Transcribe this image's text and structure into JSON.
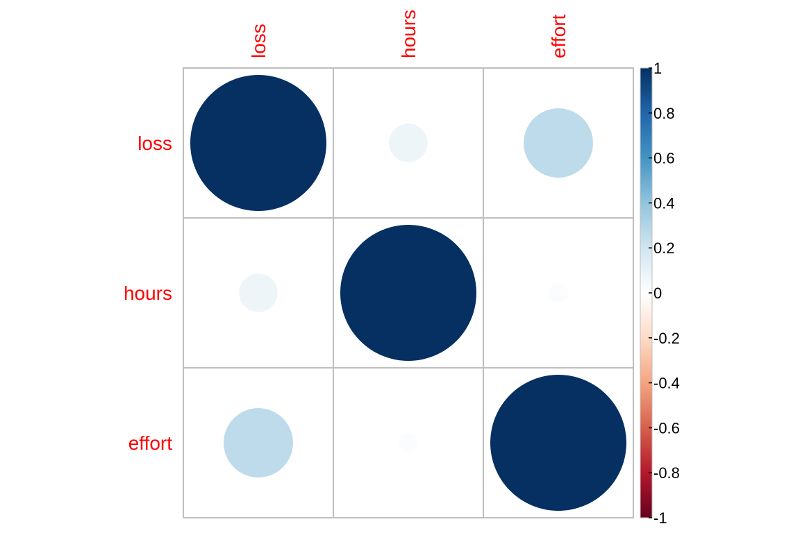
{
  "chart_data": {
    "type": "heatmap",
    "method": "circle",
    "variables": [
      "loss",
      "hours",
      "effort"
    ],
    "matrix": [
      [
        1.0,
        0.08,
        0.26
      ],
      [
        0.08,
        1.0,
        0.02
      ],
      [
        0.26,
        0.02,
        1.0
      ]
    ],
    "colorbar": {
      "range": [
        -1,
        1
      ],
      "ticks": [
        "-1",
        "-0.8",
        "-0.6",
        "-0.4",
        "-0.2",
        "0",
        "0.2",
        "0.4",
        "0.6",
        "0.8",
        "1"
      ],
      "placement": "right"
    },
    "colors": {
      "label": "#ff0000",
      "grid": "#bebebe",
      "scale": [
        "#67001f",
        "#b2182b",
        "#d6604d",
        "#f4a582",
        "#fddbc7",
        "#ffffff",
        "#d1e5f0",
        "#92c5de",
        "#4393c3",
        "#2166ac",
        "#053061"
      ]
    }
  }
}
